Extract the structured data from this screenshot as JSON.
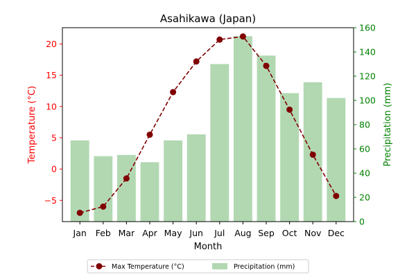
{
  "chart_data": {
    "type": "bar+line",
    "title": "Asahikawa (Japan)",
    "xlabel": "Month",
    "categories": [
      "Jan",
      "Feb",
      "Mar",
      "Apr",
      "May",
      "Jun",
      "Jul",
      "Aug",
      "Sep",
      "Oct",
      "Nov",
      "Dec"
    ],
    "left_axis": {
      "label": "Temperature (°C)",
      "color": "#ff0000",
      "ylim": [
        -8.4,
        22.6
      ],
      "ticks": [
        -5,
        0,
        5,
        10,
        15,
        20
      ]
    },
    "right_axis": {
      "label": "Precipitation (mm)",
      "color": "#008000",
      "ylim": [
        0,
        160
      ],
      "ticks": [
        0,
        20,
        40,
        60,
        80,
        100,
        120,
        140,
        160
      ]
    },
    "series": [
      {
        "name": "Max Temperature (°C)",
        "type": "line",
        "axis": "left",
        "color": "#800000",
        "line_style": "dashed",
        "marker": "circle",
        "values": [
          -7.0,
          -6.0,
          -1.5,
          5.5,
          12.3,
          17.2,
          20.7,
          21.2,
          16.5,
          9.5,
          2.3,
          -4.3
        ]
      },
      {
        "name": "Precipitation (mm)",
        "type": "bar",
        "axis": "right",
        "color": "#b2d8b2",
        "values": [
          67,
          54,
          55,
          49,
          67,
          72,
          130,
          153,
          137,
          106,
          115,
          102
        ]
      }
    ],
    "legend_position": "bottom-center",
    "grid": false
  }
}
